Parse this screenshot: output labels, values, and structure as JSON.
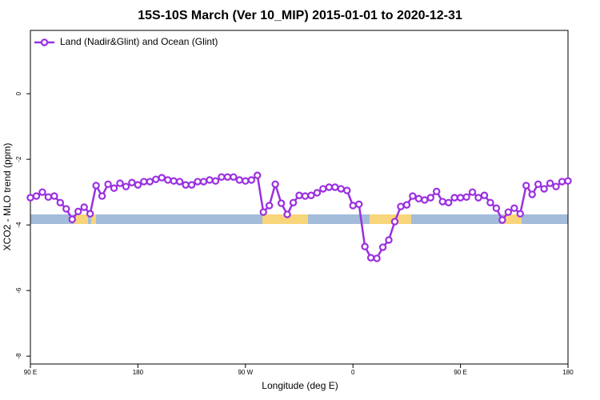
{
  "chart_data": {
    "type": "line",
    "title": "15S-10S March (Ver 10_MIP)   2015-01-01 to 2020-12-31",
    "x_label": "Longitude (deg E)",
    "y_label": "XCO2 - MLO trend (ppm)",
    "x": [
      90,
      95,
      100,
      105,
      110,
      115,
      120,
      125,
      130,
      135,
      140,
      145,
      150,
      155,
      160,
      165,
      170,
      175,
      180,
      185,
      190,
      195,
      200,
      205,
      210,
      215,
      220,
      225,
      230,
      235,
      240,
      245,
      250,
      255,
      260,
      265,
      270,
      275,
      280,
      285,
      290,
      295,
      300,
      305,
      310,
      315,
      320,
      325,
      330,
      335,
      340,
      345,
      350,
      355,
      360,
      365,
      370,
      375,
      380,
      385,
      390,
      395,
      400,
      405,
      410,
      415,
      420,
      425,
      430,
      435,
      440,
      445,
      450,
      455,
      460,
      465,
      470,
      475,
      480,
      485,
      490,
      495,
      500,
      505,
      510,
      515,
      520,
      525,
      530,
      535,
      540
    ],
    "series": [
      {
        "name": "Land (Nadir&Glint) and Ocean (Glint)",
        "color": "#9b30e0",
        "values": [
          -3.17,
          -3.12,
          -3.0,
          -3.15,
          -3.12,
          -3.32,
          -3.51,
          -3.83,
          -3.59,
          -3.46,
          -3.66,
          -2.8,
          -3.12,
          -2.76,
          -2.88,
          -2.73,
          -2.83,
          -2.71,
          -2.78,
          -2.68,
          -2.68,
          -2.61,
          -2.56,
          -2.63,
          -2.66,
          -2.68,
          -2.78,
          -2.78,
          -2.68,
          -2.68,
          -2.63,
          -2.66,
          -2.54,
          -2.54,
          -2.54,
          -2.63,
          -2.66,
          -2.63,
          -2.49,
          -3.61,
          -3.41,
          -2.76,
          -3.34,
          -3.68,
          -3.32,
          -3.1,
          -3.12,
          -3.1,
          -3.02,
          -2.9,
          -2.85,
          -2.85,
          -2.9,
          -2.95,
          -3.41,
          -3.37,
          -4.66,
          -5.0,
          -5.02,
          -4.68,
          -4.46,
          -3.9,
          -3.44,
          -3.39,
          -3.12,
          -3.2,
          -3.24,
          -3.17,
          -2.98,
          -3.29,
          -3.32,
          -3.17,
          -3.17,
          -3.15,
          -3.0,
          -3.17,
          -3.1,
          -3.32,
          -3.49,
          -3.85,
          -3.61,
          -3.49,
          -3.66,
          -2.8,
          -3.07,
          -2.76,
          -2.9,
          -2.73,
          -2.83,
          -2.68,
          -2.66
        ]
      }
    ],
    "xlim": [
      90,
      540
    ],
    "xticks": [
      {
        "value": 90,
        "label": "90 E"
      },
      {
        "value": 180,
        "label": "180"
      },
      {
        "value": 270,
        "label": "90 W"
      },
      {
        "value": 360,
        "label": "0"
      },
      {
        "value": 450,
        "label": "90 E"
      },
      {
        "value": 540,
        "label": "180"
      }
    ],
    "ylim": [
      -8.24,
      1.93
    ],
    "yticks": [
      0,
      -2,
      -4,
      -6,
      -8
    ],
    "legend": "top-left"
  }
}
